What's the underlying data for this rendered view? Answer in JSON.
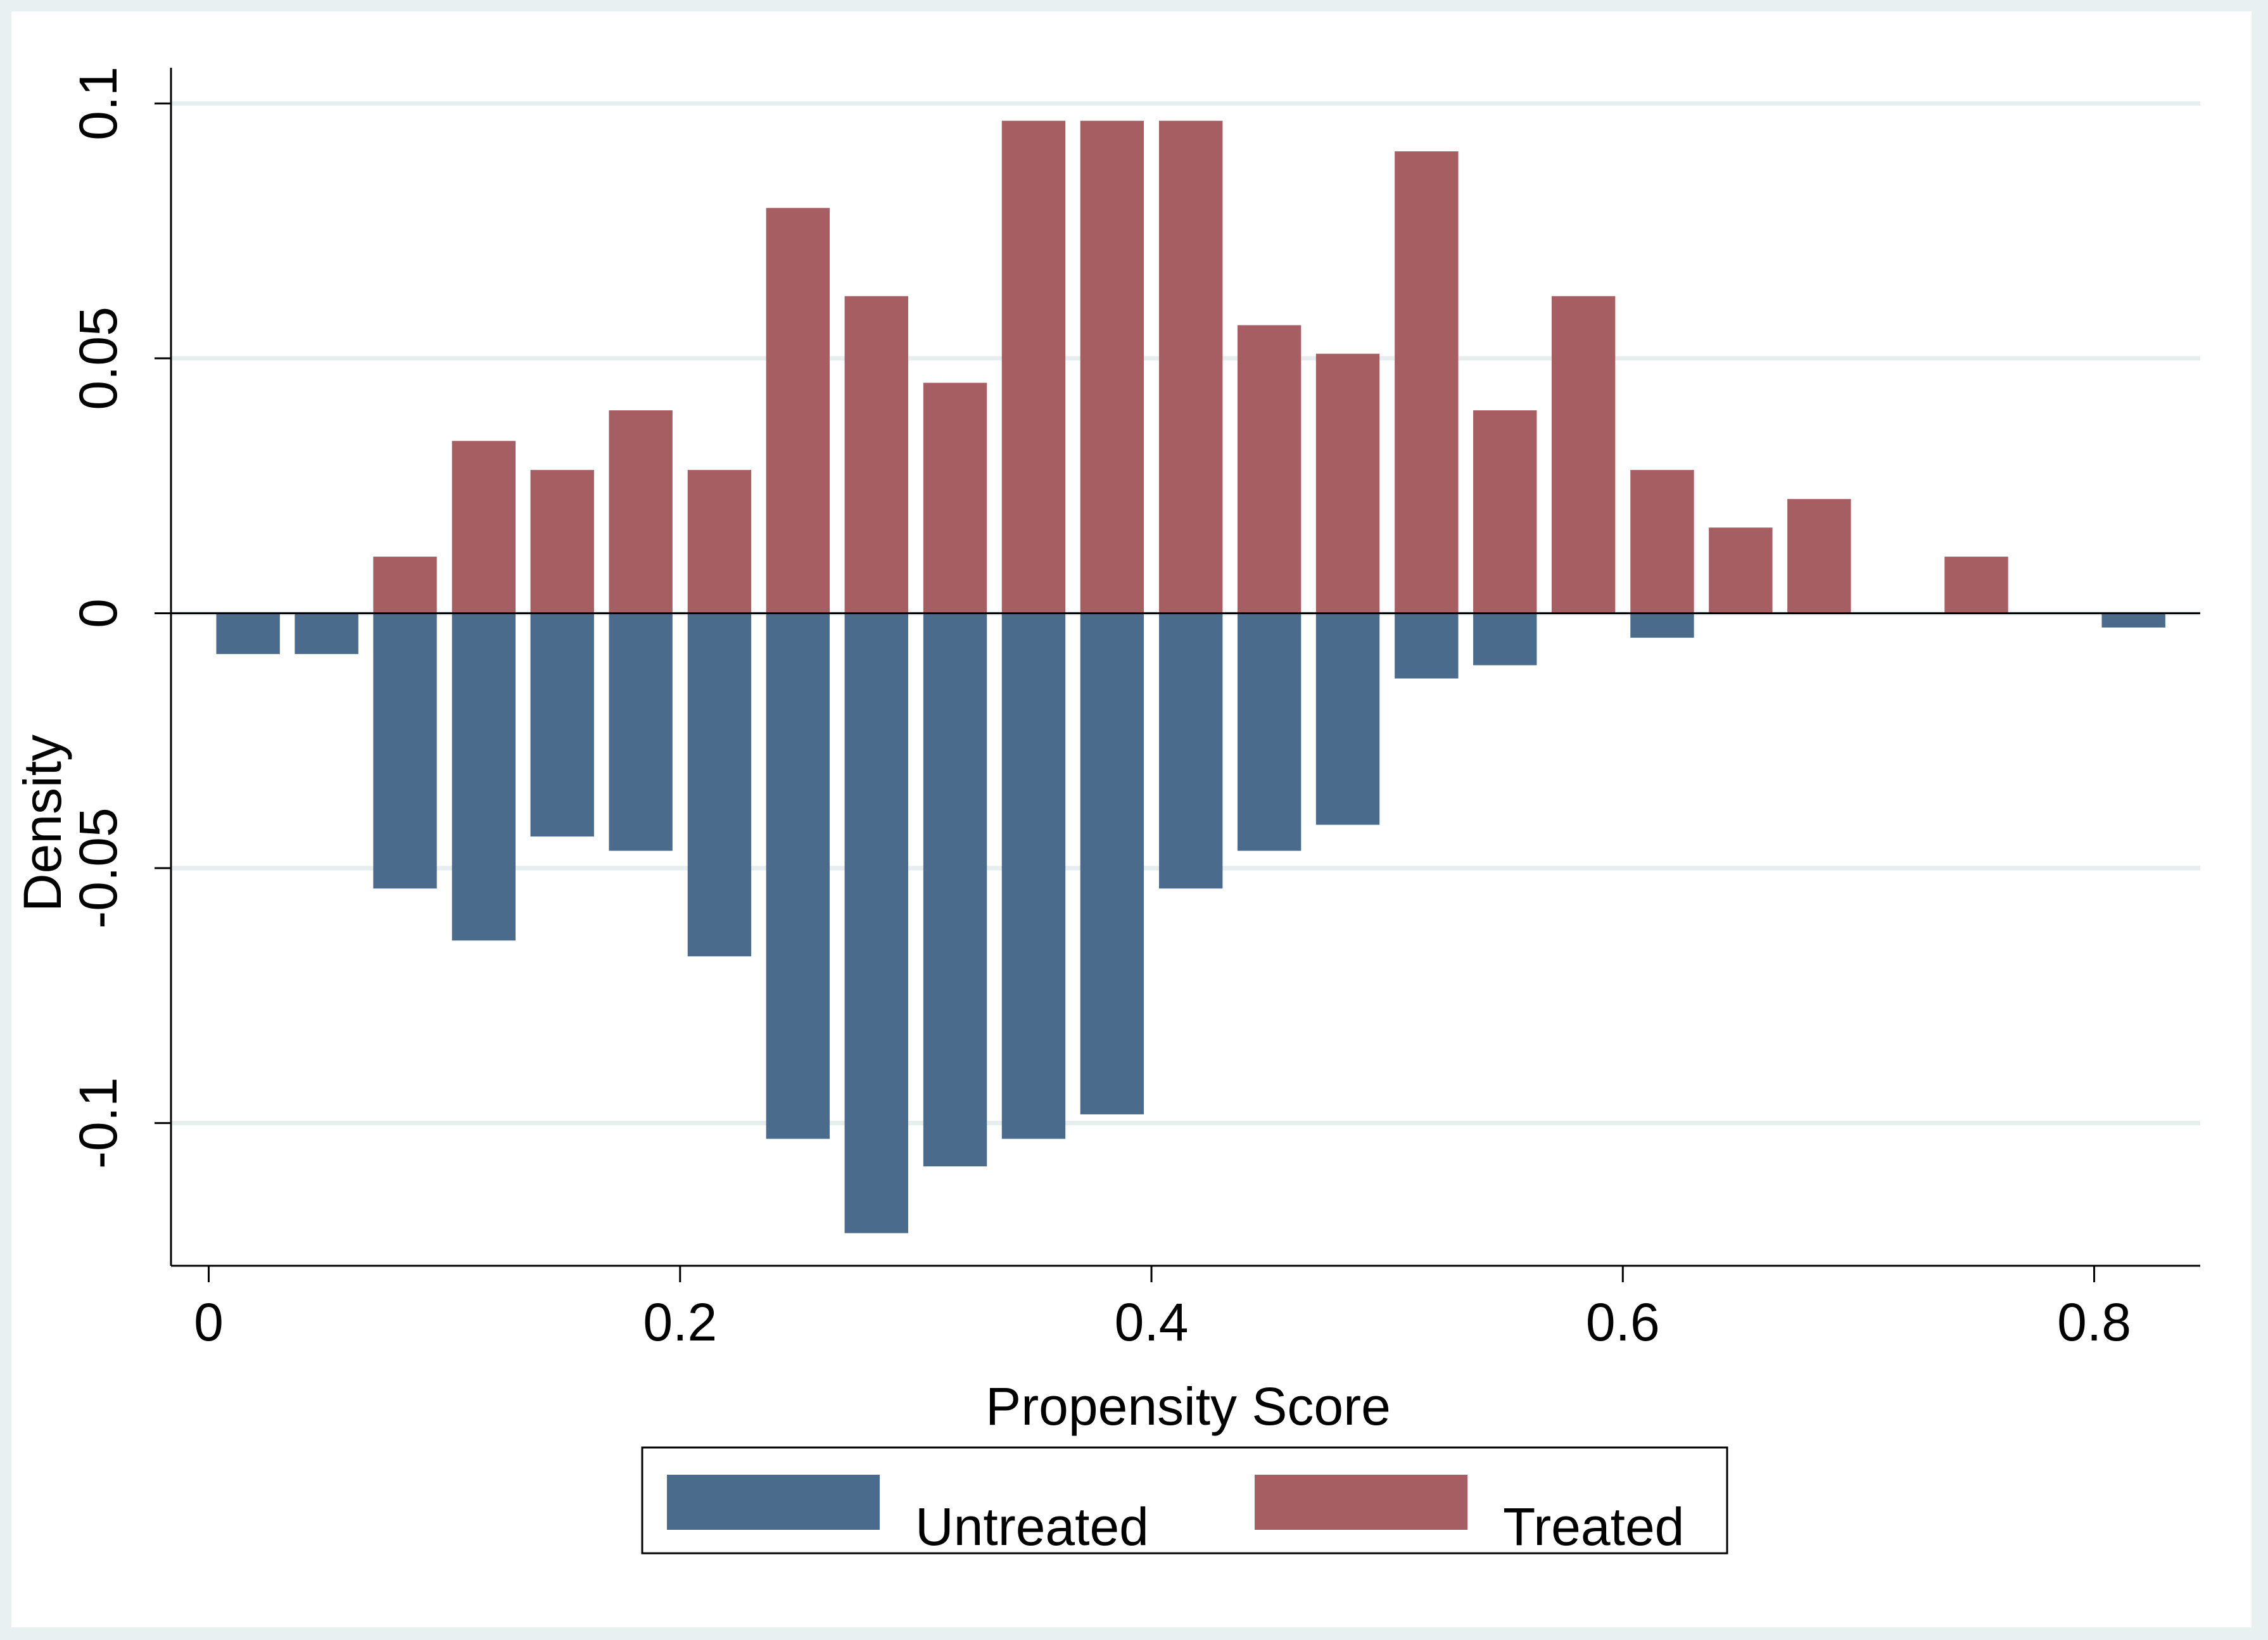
{
  "chart_data": {
    "type": "bar",
    "x_label": "Propensity Score",
    "y_label": "Density",
    "x": [
      0.0167,
      0.05,
      0.0833,
      0.1167,
      0.15,
      0.1833,
      0.2167,
      0.25,
      0.2833,
      0.3167,
      0.35,
      0.3833,
      0.4167,
      0.45,
      0.4833,
      0.5167,
      0.55,
      0.5833,
      0.6167,
      0.65,
      0.6833,
      0.7167,
      0.75,
      0.7833,
      0.8167
    ],
    "series": [
      {
        "name": "Untreated",
        "color": "#4a6b8c",
        "values": [
          -0.008,
          -0.008,
          -0.054,
          -0.0642,
          -0.0438,
          -0.0466,
          -0.0673,
          -0.1031,
          -0.1216,
          -0.1085,
          -0.1031,
          -0.0983,
          -0.054,
          -0.0466,
          -0.0415,
          -0.0128,
          -0.0102,
          0,
          -0.0048,
          0,
          0,
          0,
          0,
          0,
          -0.0028
        ]
      },
      {
        "name": "Treated",
        "color": "#a65e62",
        "values": [
          0,
          0,
          0.0111,
          0.0338,
          0.0281,
          0.0398,
          0.0281,
          0.0795,
          0.0622,
          0.0452,
          0.0966,
          0.0966,
          0.0966,
          0.0565,
          0.0509,
          0.0906,
          0.0398,
          0.0622,
          0.0281,
          0.0168,
          0.0224,
          0,
          0.0111,
          0,
          0
        ]
      }
    ],
    "xlim": [
      -0.016,
      0.845
    ],
    "xticks": [
      0,
      0.2,
      0.4,
      0.6,
      0.8
    ],
    "ylim": [
      -0.128,
      0.107
    ],
    "yticks": [
      -0.1,
      -0.05,
      0,
      0.05,
      0.1
    ],
    "grid": true,
    "legend": "bottom"
  }
}
